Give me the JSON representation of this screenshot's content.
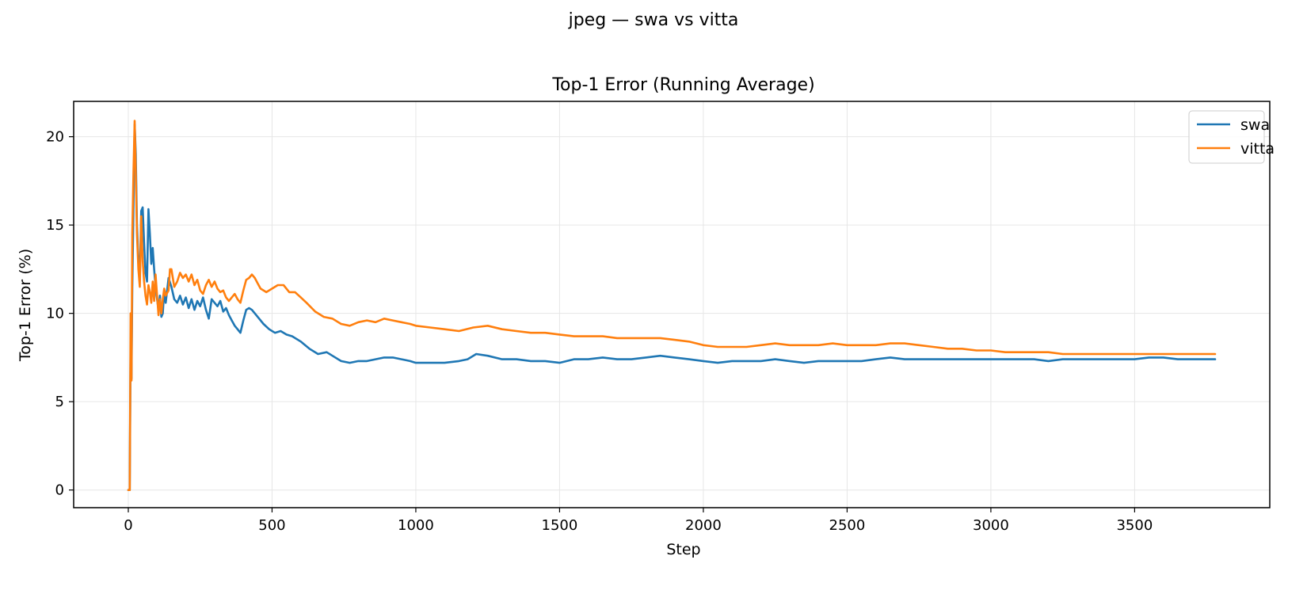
{
  "figure": {
    "suptitle": "jpeg — swa vs vitta"
  },
  "chart_data": {
    "type": "line",
    "title": "Top-1 Error (Running Average)",
    "xlabel": "Step",
    "ylabel": "Top-1 Error (%)",
    "xlim": [
      -190,
      3970
    ],
    "ylim": [
      -1,
      22
    ],
    "xticks": [
      0,
      500,
      1000,
      1500,
      2000,
      2500,
      3000,
      3500
    ],
    "yticks": [
      0,
      5,
      10,
      15,
      20
    ],
    "grid": true,
    "legend_position": "top-right",
    "series": [
      {
        "name": "swa",
        "color": "#1f77b4",
        "points": [
          [
            0,
            0
          ],
          [
            5,
            0
          ],
          [
            8,
            8.3
          ],
          [
            11,
            6.3
          ],
          [
            14,
            11.5
          ],
          [
            18,
            16
          ],
          [
            22,
            20.7
          ],
          [
            26,
            19
          ],
          [
            30,
            15
          ],
          [
            35,
            13
          ],
          [
            40,
            12
          ],
          [
            45,
            15.8
          ],
          [
            50,
            16
          ],
          [
            55,
            14
          ],
          [
            60,
            12.3
          ],
          [
            65,
            11.8
          ],
          [
            70,
            15.9
          ],
          [
            75,
            14.5
          ],
          [
            80,
            12.8
          ],
          [
            85,
            13.7
          ],
          [
            90,
            12.5
          ],
          [
            95,
            11.5
          ],
          [
            100,
            10.8
          ],
          [
            105,
            10.2
          ],
          [
            110,
            11
          ],
          [
            115,
            9.8
          ],
          [
            120,
            10
          ],
          [
            125,
            11.3
          ],
          [
            130,
            10.6
          ],
          [
            140,
            12
          ],
          [
            150,
            11.5
          ],
          [
            160,
            10.8
          ],
          [
            170,
            10.6
          ],
          [
            180,
            11
          ],
          [
            190,
            10.5
          ],
          [
            200,
            10.9
          ],
          [
            210,
            10.3
          ],
          [
            220,
            10.8
          ],
          [
            230,
            10.2
          ],
          [
            240,
            10.7
          ],
          [
            250,
            10.4
          ],
          [
            260,
            10.9
          ],
          [
            270,
            10.2
          ],
          [
            280,
            9.7
          ],
          [
            290,
            10.8
          ],
          [
            300,
            10.6
          ],
          [
            310,
            10.4
          ],
          [
            320,
            10.7
          ],
          [
            330,
            10.1
          ],
          [
            340,
            10.3
          ],
          [
            350,
            9.9
          ],
          [
            360,
            9.6
          ],
          [
            370,
            9.3
          ],
          [
            380,
            9.1
          ],
          [
            390,
            8.9
          ],
          [
            400,
            9.6
          ],
          [
            410,
            10.2
          ],
          [
            420,
            10.3
          ],
          [
            430,
            10.2
          ],
          [
            450,
            9.8
          ],
          [
            470,
            9.4
          ],
          [
            490,
            9.1
          ],
          [
            510,
            8.9
          ],
          [
            530,
            9
          ],
          [
            550,
            8.8
          ],
          [
            570,
            8.7
          ],
          [
            600,
            8.4
          ],
          [
            630,
            8
          ],
          [
            660,
            7.7
          ],
          [
            690,
            7.8
          ],
          [
            710,
            7.6
          ],
          [
            740,
            7.3
          ],
          [
            770,
            7.2
          ],
          [
            800,
            7.3
          ],
          [
            830,
            7.3
          ],
          [
            860,
            7.4
          ],
          [
            890,
            7.5
          ],
          [
            920,
            7.5
          ],
          [
            950,
            7.4
          ],
          [
            980,
            7.3
          ],
          [
            1000,
            7.2
          ],
          [
            1050,
            7.2
          ],
          [
            1100,
            7.2
          ],
          [
            1150,
            7.3
          ],
          [
            1180,
            7.4
          ],
          [
            1210,
            7.7
          ],
          [
            1250,
            7.6
          ],
          [
            1300,
            7.4
          ],
          [
            1350,
            7.4
          ],
          [
            1400,
            7.3
          ],
          [
            1450,
            7.3
          ],
          [
            1500,
            7.2
          ],
          [
            1550,
            7.4
          ],
          [
            1600,
            7.4
          ],
          [
            1650,
            7.5
          ],
          [
            1700,
            7.4
          ],
          [
            1750,
            7.4
          ],
          [
            1800,
            7.5
          ],
          [
            1850,
            7.6
          ],
          [
            1900,
            7.5
          ],
          [
            1950,
            7.4
          ],
          [
            2000,
            7.3
          ],
          [
            2050,
            7.2
          ],
          [
            2100,
            7.3
          ],
          [
            2150,
            7.3
          ],
          [
            2200,
            7.3
          ],
          [
            2250,
            7.4
          ],
          [
            2300,
            7.3
          ],
          [
            2350,
            7.2
          ],
          [
            2400,
            7.3
          ],
          [
            2450,
            7.3
          ],
          [
            2500,
            7.3
          ],
          [
            2550,
            7.3
          ],
          [
            2600,
            7.4
          ],
          [
            2650,
            7.5
          ],
          [
            2700,
            7.4
          ],
          [
            2750,
            7.4
          ],
          [
            2800,
            7.4
          ],
          [
            2850,
            7.4
          ],
          [
            2900,
            7.4
          ],
          [
            2950,
            7.4
          ],
          [
            3000,
            7.4
          ],
          [
            3050,
            7.4
          ],
          [
            3100,
            7.4
          ],
          [
            3150,
            7.4
          ],
          [
            3200,
            7.3
          ],
          [
            3250,
            7.4
          ],
          [
            3300,
            7.4
          ],
          [
            3350,
            7.4
          ],
          [
            3400,
            7.4
          ],
          [
            3450,
            7.4
          ],
          [
            3500,
            7.4
          ],
          [
            3550,
            7.5
          ],
          [
            3600,
            7.5
          ],
          [
            3650,
            7.4
          ],
          [
            3700,
            7.4
          ],
          [
            3750,
            7.4
          ],
          [
            3780,
            7.4
          ]
        ]
      },
      {
        "name": "vitta",
        "color": "#ff7f0e",
        "points": [
          [
            0,
            0
          ],
          [
            5,
            0
          ],
          [
            8,
            10
          ],
          [
            11,
            6.2
          ],
          [
            14,
            14.5
          ],
          [
            18,
            18
          ],
          [
            22,
            20.9
          ],
          [
            26,
            18
          ],
          [
            30,
            14.5
          ],
          [
            35,
            12.5
          ],
          [
            40,
            11.5
          ],
          [
            45,
            15.5
          ],
          [
            50,
            13
          ],
          [
            55,
            11.8
          ],
          [
            60,
            11
          ],
          [
            65,
            10.5
          ],
          [
            70,
            11.6
          ],
          [
            75,
            11.2
          ],
          [
            80,
            10.6
          ],
          [
            85,
            11.8
          ],
          [
            90,
            10.7
          ],
          [
            95,
            12.2
          ],
          [
            100,
            11
          ],
          [
            105,
            9.9
          ],
          [
            110,
            10.8
          ],
          [
            115,
            10
          ],
          [
            120,
            10.8
          ],
          [
            125,
            11.4
          ],
          [
            130,
            11
          ],
          [
            140,
            11.3
          ],
          [
            145,
            12.5
          ],
          [
            150,
            12.5
          ],
          [
            160,
            11.5
          ],
          [
            170,
            11.8
          ],
          [
            180,
            12.3
          ],
          [
            190,
            12
          ],
          [
            200,
            12.2
          ],
          [
            210,
            11.8
          ],
          [
            220,
            12.2
          ],
          [
            230,
            11.6
          ],
          [
            240,
            11.9
          ],
          [
            250,
            11.3
          ],
          [
            260,
            11.1
          ],
          [
            270,
            11.6
          ],
          [
            280,
            11.9
          ],
          [
            290,
            11.5
          ],
          [
            300,
            11.8
          ],
          [
            310,
            11.4
          ],
          [
            320,
            11.2
          ],
          [
            330,
            11.3
          ],
          [
            340,
            10.9
          ],
          [
            350,
            10.7
          ],
          [
            360,
            10.9
          ],
          [
            370,
            11.1
          ],
          [
            380,
            10.8
          ],
          [
            390,
            10.6
          ],
          [
            400,
            11.3
          ],
          [
            410,
            11.9
          ],
          [
            420,
            12
          ],
          [
            430,
            12.2
          ],
          [
            440,
            12
          ],
          [
            450,
            11.7
          ],
          [
            460,
            11.4
          ],
          [
            480,
            11.2
          ],
          [
            500,
            11.4
          ],
          [
            520,
            11.6
          ],
          [
            540,
            11.6
          ],
          [
            560,
            11.2
          ],
          [
            580,
            11.2
          ],
          [
            600,
            10.9
          ],
          [
            620,
            10.6
          ],
          [
            650,
            10.1
          ],
          [
            680,
            9.8
          ],
          [
            710,
            9.7
          ],
          [
            740,
            9.4
          ],
          [
            770,
            9.3
          ],
          [
            800,
            9.5
          ],
          [
            830,
            9.6
          ],
          [
            860,
            9.5
          ],
          [
            890,
            9.7
          ],
          [
            920,
            9.6
          ],
          [
            950,
            9.5
          ],
          [
            980,
            9.4
          ],
          [
            1000,
            9.3
          ],
          [
            1050,
            9.2
          ],
          [
            1100,
            9.1
          ],
          [
            1150,
            9
          ],
          [
            1200,
            9.2
          ],
          [
            1250,
            9.3
          ],
          [
            1300,
            9.1
          ],
          [
            1350,
            9
          ],
          [
            1400,
            8.9
          ],
          [
            1450,
            8.9
          ],
          [
            1500,
            8.8
          ],
          [
            1550,
            8.7
          ],
          [
            1600,
            8.7
          ],
          [
            1650,
            8.7
          ],
          [
            1700,
            8.6
          ],
          [
            1750,
            8.6
          ],
          [
            1800,
            8.6
          ],
          [
            1850,
            8.6
          ],
          [
            1900,
            8.5
          ],
          [
            1950,
            8.4
          ],
          [
            2000,
            8.2
          ],
          [
            2050,
            8.1
          ],
          [
            2100,
            8.1
          ],
          [
            2150,
            8.1
          ],
          [
            2200,
            8.2
          ],
          [
            2250,
            8.3
          ],
          [
            2300,
            8.2
          ],
          [
            2350,
            8.2
          ],
          [
            2400,
            8.2
          ],
          [
            2450,
            8.3
          ],
          [
            2500,
            8.2
          ],
          [
            2550,
            8.2
          ],
          [
            2600,
            8.2
          ],
          [
            2650,
            8.3
          ],
          [
            2700,
            8.3
          ],
          [
            2750,
            8.2
          ],
          [
            2800,
            8.1
          ],
          [
            2850,
            8
          ],
          [
            2900,
            8
          ],
          [
            2950,
            7.9
          ],
          [
            3000,
            7.9
          ],
          [
            3050,
            7.8
          ],
          [
            3100,
            7.8
          ],
          [
            3150,
            7.8
          ],
          [
            3200,
            7.8
          ],
          [
            3250,
            7.7
          ],
          [
            3300,
            7.7
          ],
          [
            3350,
            7.7
          ],
          [
            3400,
            7.7
          ],
          [
            3450,
            7.7
          ],
          [
            3500,
            7.7
          ],
          [
            3550,
            7.7
          ],
          [
            3600,
            7.7
          ],
          [
            3650,
            7.7
          ],
          [
            3700,
            7.7
          ],
          [
            3750,
            7.7
          ],
          [
            3780,
            7.7
          ]
        ]
      }
    ]
  }
}
